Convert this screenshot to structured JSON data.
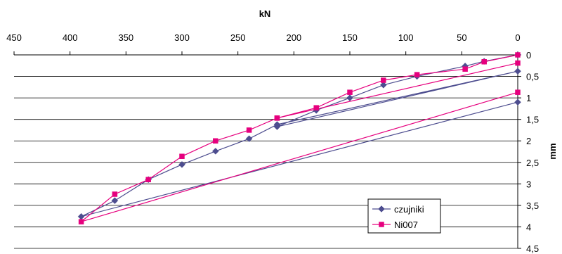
{
  "chart_data": {
    "type": "line",
    "xlabel": "kN",
    "ylabel": "mm",
    "xlim": [
      450,
      0
    ],
    "ylim": [
      0,
      4.5
    ],
    "x_axis_position": "top",
    "y_axis_position": "right",
    "x_axis_reversed": true,
    "y_axis_reversed": true,
    "grid": true,
    "legend_position": "bottom-right",
    "x_ticks": [
      {
        "value": 450,
        "label": "450"
      },
      {
        "value": 400,
        "label": "400"
      },
      {
        "value": 350,
        "label": "350"
      },
      {
        "value": 300,
        "label": "300"
      },
      {
        "value": 250,
        "label": "250"
      },
      {
        "value": 200,
        "label": "200"
      },
      {
        "value": 150,
        "label": "150"
      },
      {
        "value": 100,
        "label": "100"
      },
      {
        "value": 50,
        "label": "50"
      },
      {
        "value": 0,
        "label": "0"
      }
    ],
    "y_ticks": [
      {
        "value": 0,
        "label": "0"
      },
      {
        "value": 0.5,
        "label": "0,5"
      },
      {
        "value": 1,
        "label": "1"
      },
      {
        "value": 1.5,
        "label": "1,5"
      },
      {
        "value": 2,
        "label": "2"
      },
      {
        "value": 2.5,
        "label": "2,5"
      },
      {
        "value": 3,
        "label": "3"
      },
      {
        "value": 3.5,
        "label": "3,5"
      },
      {
        "value": 4,
        "label": "4"
      },
      {
        "value": 4.5,
        "label": "4,5"
      }
    ],
    "series": [
      {
        "name": "czujniki",
        "color": "#4D4D8F",
        "marker": "diamond",
        "points": [
          [
            0,
            0
          ],
          [
            30,
            0.15
          ],
          [
            47,
            0.26
          ],
          [
            90,
            0.5
          ],
          [
            120,
            0.7
          ],
          [
            150,
            1.0
          ],
          [
            180,
            1.29
          ],
          [
            215,
            1.67
          ],
          [
            0,
            0.38
          ],
          [
            215,
            1.62
          ],
          [
            240,
            1.95
          ],
          [
            270,
            2.24
          ],
          [
            300,
            2.55
          ],
          [
            330,
            2.9
          ],
          [
            360,
            3.39
          ],
          [
            390,
            3.76
          ],
          [
            0,
            1.1
          ]
        ]
      },
      {
        "name": "Ni007",
        "color": "#E6007E",
        "marker": "square",
        "points": [
          [
            0,
            0
          ],
          [
            30,
            0.16
          ],
          [
            47,
            0.33
          ],
          [
            90,
            0.46
          ],
          [
            120,
            0.59
          ],
          [
            150,
            0.87
          ],
          [
            180,
            1.23
          ],
          [
            215,
            1.47
          ],
          [
            0,
            0.19
          ],
          [
            215,
            1.47
          ],
          [
            240,
            1.75
          ],
          [
            270,
            2.0
          ],
          [
            300,
            2.36
          ],
          [
            330,
            2.9
          ],
          [
            360,
            3.24
          ],
          [
            390,
            3.88
          ],
          [
            0,
            0.87
          ]
        ]
      }
    ]
  }
}
